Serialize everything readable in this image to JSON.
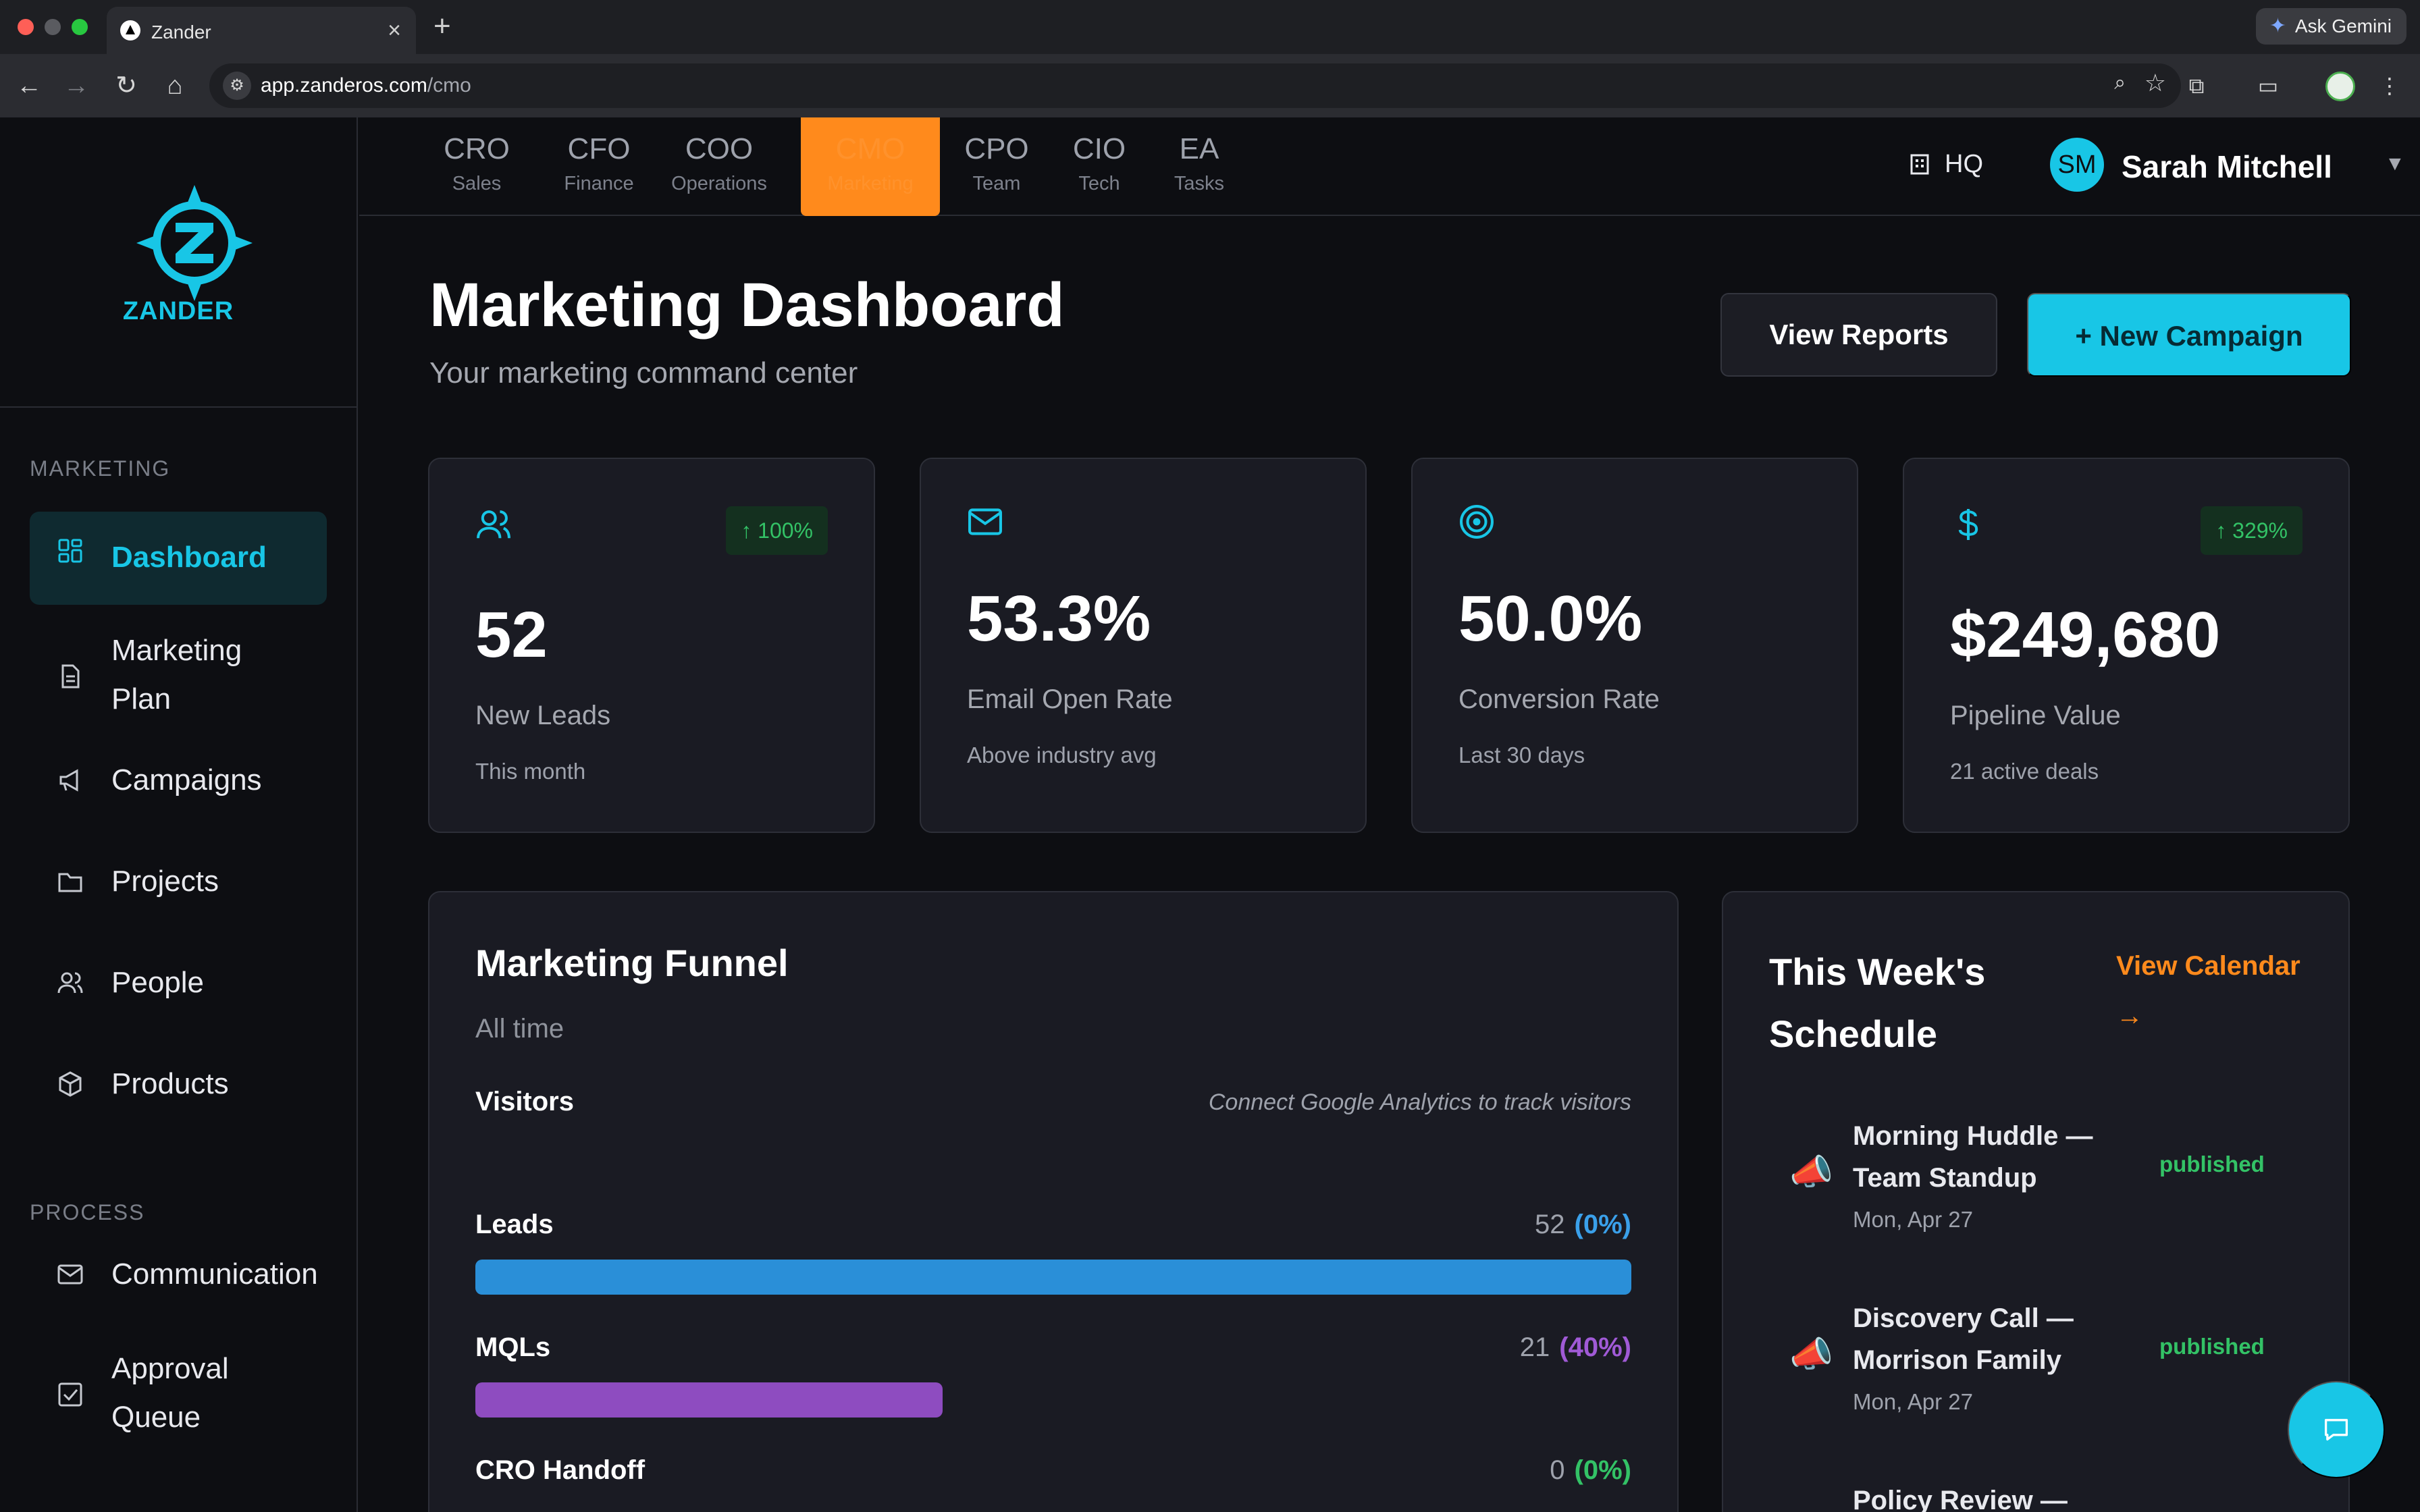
{
  "browser": {
    "tab_title": "Zander",
    "gemini_label": "Ask Gemini",
    "url_host": "app.zanderos.com",
    "url_path": "/cmo"
  },
  "brand": {
    "name": "ZANDER",
    "accent": "#18c6e6",
    "orange": "#ff8a1c"
  },
  "sidebar": {
    "sections": [
      {
        "label": "MARKETING"
      },
      {
        "label": "PROCESS"
      }
    ],
    "items": [
      {
        "label": "Dashboard",
        "icon": "dashboard-icon",
        "active": true
      },
      {
        "label": "Marketing Plan",
        "icon": "document-icon"
      },
      {
        "label": "Campaigns",
        "icon": "megaphone-icon"
      },
      {
        "label": "Projects",
        "icon": "folder-icon"
      },
      {
        "label": "People",
        "icon": "people-icon"
      },
      {
        "label": "Products",
        "icon": "package-icon"
      },
      {
        "label": "Communication",
        "icon": "mail-icon"
      },
      {
        "label": "Approval Queue",
        "icon": "checkbox-icon"
      }
    ]
  },
  "topnav": {
    "departments": [
      {
        "code": "CRO",
        "sub": "Sales"
      },
      {
        "code": "CFO",
        "sub": "Finance"
      },
      {
        "code": "COO",
        "sub": "Operations"
      },
      {
        "code": "CMO",
        "sub": "Marketing",
        "active": true
      },
      {
        "code": "CPO",
        "sub": "Team"
      },
      {
        "code": "CIO",
        "sub": "Tech"
      },
      {
        "code": "EA",
        "sub": "Tasks"
      }
    ],
    "hq_label": "HQ",
    "user": {
      "initials": "SM",
      "name": "Sarah Mitchell"
    }
  },
  "header": {
    "title": "Marketing Dashboard",
    "subtitle": "Your marketing command center",
    "view_reports": "View Reports",
    "new_campaign": "+ New Campaign"
  },
  "stats": [
    {
      "value": "52",
      "label": "New Leads",
      "note": "This month",
      "badge": "↑ 100%",
      "icon": "people-icon"
    },
    {
      "value": "53.3%",
      "label": "Email Open Rate",
      "note": "Above industry avg",
      "icon": "mail-icon"
    },
    {
      "value": "50.0%",
      "label": "Conversion Rate",
      "note": "Last 30 days",
      "icon": "target-icon"
    },
    {
      "value": "$249,680",
      "label": "Pipeline Value",
      "note": "21 active deals",
      "badge": "↑ 329%",
      "icon": "dollar-icon"
    }
  ],
  "funnel": {
    "title": "Marketing Funnel",
    "subtitle": "All time",
    "visitors_label": "Visitors",
    "visitors_note": "Connect Google Analytics to track visitors",
    "rows": [
      {
        "label": "Leads",
        "count": "52",
        "pct": "(0%)",
        "fill": 1.0,
        "color": "#2a8fd8",
        "pct_color": "#3aa0ea"
      },
      {
        "label": "MQLs",
        "count": "21",
        "pct": "(40%)",
        "fill": 0.404,
        "color": "#8e4cc0",
        "pct_color": "#a05ad6"
      },
      {
        "label": "CRO Handoff",
        "count": "0",
        "pct": "(0%)",
        "fill": 0.0,
        "color": "#33c266",
        "pct_color": "#33c266"
      }
    ]
  },
  "schedule": {
    "title": "This Week's Schedule",
    "view_calendar": "View Calendar →",
    "events": [
      {
        "title": "Morning Huddle — Team Standup",
        "date": "Mon, Apr 27",
        "status": "published"
      },
      {
        "title": "Discovery Call — Morrison Family",
        "date": "Mon, Apr 27",
        "status": "published"
      },
      {
        "title": "Policy Review —"
      }
    ]
  }
}
